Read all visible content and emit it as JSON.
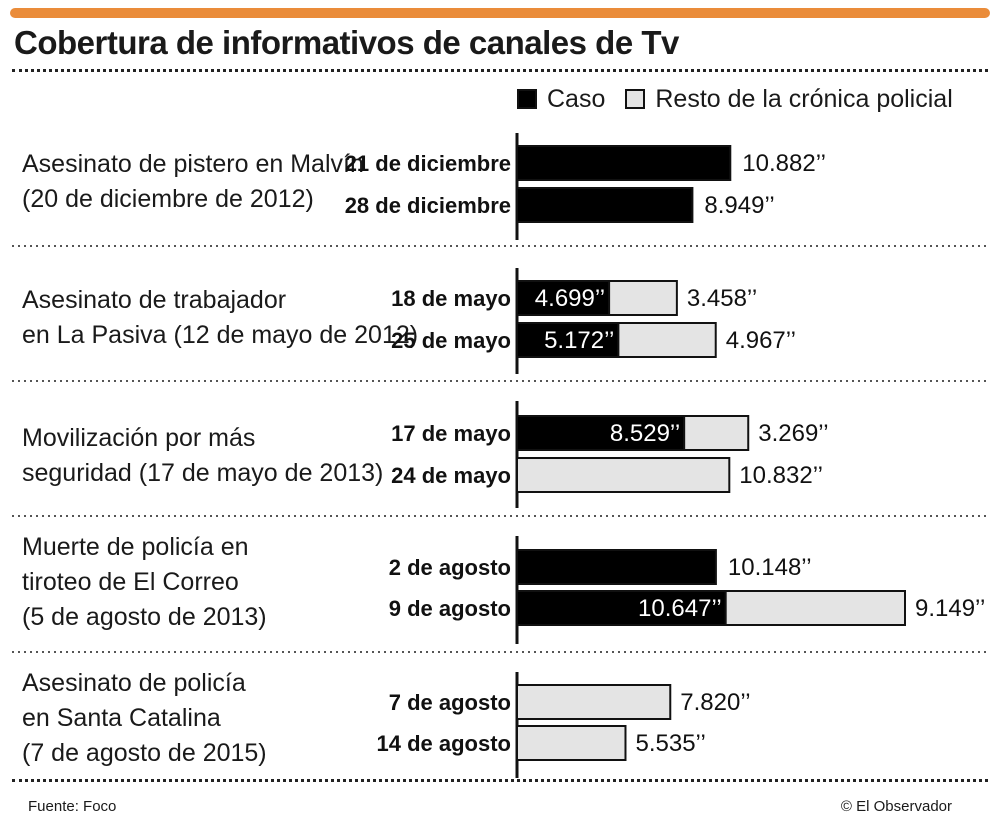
{
  "title": "Cobertura de informativos de canales de Tv",
  "colors": {
    "accent": "#ea8c3a",
    "caso": "#000000",
    "resto": "#e4e4e4",
    "text": "#1a1a1a"
  },
  "legend": {
    "caso": "Caso",
    "resto": "Resto de la crónica policial"
  },
  "source": "Fuente: Foco",
  "credit": "© El Observador",
  "chart_data": {
    "type": "bar",
    "orientation": "horizontal",
    "stacked": true,
    "unit": "seconds",
    "series": [
      {
        "name": "Caso",
        "color": "#000000"
      },
      {
        "name": "Resto de la crónica policial",
        "color": "#e4e4e4"
      }
    ],
    "groups": [
      {
        "label_lines": [
          "Asesinato de pistero en Malvín",
          "(20 de diciembre de 2012)"
        ],
        "rows": [
          {
            "date": "21 de diciembre",
            "caso": 10882,
            "resto": null,
            "caso_label": "10.882’’",
            "resto_label": ""
          },
          {
            "date": "28 de diciembre",
            "caso": 8949,
            "resto": null,
            "caso_label": "8.949’’",
            "resto_label": ""
          }
        ]
      },
      {
        "label_lines": [
          "Asesinato de trabajador",
          "en La Pasiva (12 de mayo de 2012)"
        ],
        "rows": [
          {
            "date": "18 de mayo",
            "caso": 4699,
            "resto": 3458,
            "caso_label": "4.699’’",
            "resto_label": "3.458’’"
          },
          {
            "date": "25 de mayo",
            "caso": 5172,
            "resto": 4967,
            "caso_label": "5.172’’",
            "resto_label": "4.967’’"
          }
        ]
      },
      {
        "label_lines": [
          "Movilización por más",
          "seguridad (17 de mayo de 2013)"
        ],
        "rows": [
          {
            "date": "17 de mayo",
            "caso": 8529,
            "resto": 3269,
            "caso_label": "8.529’’",
            "resto_label": "3.269’’"
          },
          {
            "date": "24 de mayo",
            "caso": null,
            "resto": 10832,
            "caso_label": "",
            "resto_label": "10.832’’"
          }
        ]
      },
      {
        "label_lines": [
          "Muerte de policía en",
          "tiroteo de El Correo",
          "(5 de agosto de 2013)"
        ],
        "rows": [
          {
            "date": "2 de agosto",
            "caso": 10148,
            "resto": null,
            "caso_label": "10.148’’",
            "resto_label": ""
          },
          {
            "date": "9 de agosto",
            "caso": 10647,
            "resto": 9149,
            "caso_label": "10.647’’",
            "resto_label": "9.149’’"
          }
        ]
      },
      {
        "label_lines": [
          "Asesinato de policía",
          "en Santa Catalina",
          "(7 de agosto de 2015)"
        ],
        "rows": [
          {
            "date": "7 de agosto",
            "caso": null,
            "resto": 7820,
            "caso_label": "",
            "resto_label": "7.820’’"
          },
          {
            "date": "14 de agosto",
            "caso": null,
            "resto": 5535,
            "caso_label": "",
            "resto_label": "5.535’’"
          }
        ]
      }
    ]
  }
}
